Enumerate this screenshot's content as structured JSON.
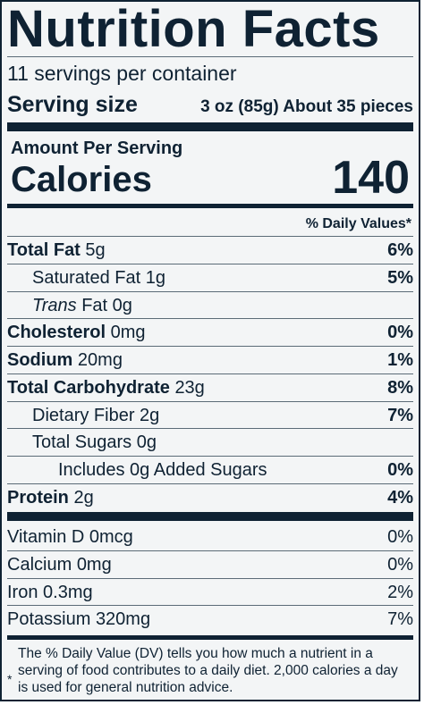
{
  "label": {
    "title": "Nutrition Facts",
    "servings_per_container": "11 servings per container",
    "serving_size_label": "Serving size",
    "serving_size_value": "3 oz (85g) About 35 pieces",
    "amount_per_serving": "Amount Per Serving",
    "calories_label": "Calories",
    "calories_value": "140",
    "daily_values_header": "% Daily Values*",
    "nutrients": [
      {
        "name": "Total Fat",
        "amount": "5g",
        "dv": "6%"
      },
      {
        "name": "Saturated Fat",
        "amount": "1g",
        "dv": "5%"
      },
      {
        "name": "Trans",
        "name_suffix": "Fat",
        "amount": "0g",
        "dv": ""
      },
      {
        "name": "Cholesterol",
        "amount": "0mg",
        "dv": "0%"
      },
      {
        "name": "Sodium",
        "amount": "20mg",
        "dv": "1%"
      },
      {
        "name": "Total Carbohydrate",
        "amount": "23g",
        "dv": "8%"
      },
      {
        "name": "Dietary Fiber",
        "amount": "2g",
        "dv": "7%"
      },
      {
        "name": "Total Sugars",
        "amount": "0g",
        "dv": ""
      },
      {
        "name": "Includes 0g Added Sugars",
        "amount": "",
        "dv": "0%"
      },
      {
        "name": "Protein",
        "amount": "2g",
        "dv": "4%"
      }
    ],
    "vitamins": [
      {
        "name": "Vitamin D",
        "amount": "0mcg",
        "dv": "0%"
      },
      {
        "name": "Calcium",
        "amount": "0mg",
        "dv": "0%"
      },
      {
        "name": "Iron",
        "amount": "0.3mg",
        "dv": "2%"
      },
      {
        "name": "Potassium",
        "amount": "320mg",
        "dv": "7%"
      }
    ],
    "footnote_asterisk": "*",
    "footnote": "The % Daily Value (DV) tells you how much a nutrient in a serving of food contributes to a daily diet. 2,000 calories a day is used for general nutrition advice."
  }
}
